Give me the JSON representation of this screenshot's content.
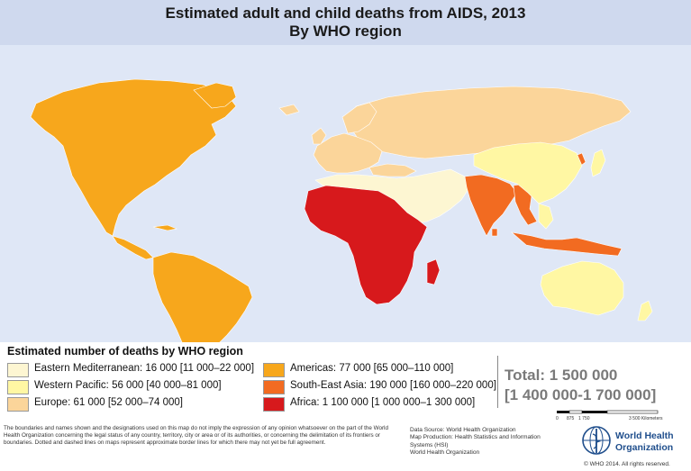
{
  "header": {
    "title_line1": "Estimated adult and child deaths from AIDS, 2013",
    "title_line2": "By WHO region"
  },
  "colors": {
    "ocean": "#dfe7f6",
    "eastern_mediterranean": "#fdf6d2",
    "western_pacific": "#fff7a3",
    "europe": "#fbd59a",
    "americas": "#f7a71c",
    "south_east_asia": "#f26b21",
    "africa": "#d7191c"
  },
  "legend": {
    "title": "Estimated number of deaths by WHO region",
    "items": [
      {
        "key": "eastern_mediterranean",
        "label": "Eastern Mediterranean: 16 000 [11 000–22 000]",
        "color": "#fdf6d2"
      },
      {
        "key": "western_pacific",
        "label": "Western Pacific: 56 000 [40 000–81 000]",
        "color": "#fff7a3"
      },
      {
        "key": "europe",
        "label": "Europe: 61 000 [52 000–74 000]",
        "color": "#fbd59a"
      },
      {
        "key": "americas",
        "label": "Americas: 77 000 [65 000–110 000]",
        "color": "#f7a71c"
      },
      {
        "key": "south_east_asia",
        "label": "South-East Asia: 190 000 [160 000–220 000]",
        "color": "#f26b21"
      },
      {
        "key": "africa",
        "label": "Africa: 1 100 000 [1 000 000–1 300 000]",
        "color": "#d7191c"
      }
    ],
    "total_line1": "Total: 1 500 000",
    "total_line2": "[1 400 000-1 700 000]"
  },
  "scale_bar": {
    "labels": [
      "0",
      "875",
      "1 750",
      "3 500 Kilometers"
    ]
  },
  "footer": {
    "disclaimer": "The boundaries and names shown and the designations used on this map do not imply the expression of any opinion whatsoever on the part of the World Health Organization concerning the legal status of any country, territory, city or area or of its authorities, or concerning the delimitation of its frontiers or boundaries. Dotted and dashed lines on maps represent approximate border lines for which there may not yet be full agreement.",
    "data_source": "Data Source: World Health Organization",
    "map_production": "Map Production: Health Statistics and Information Systems (HSI)",
    "map_production_org": "World Health Organization",
    "logo_line1": "World Health",
    "logo_line2": "Organization",
    "copyright": "© WHO 2014. All rights reserved."
  }
}
